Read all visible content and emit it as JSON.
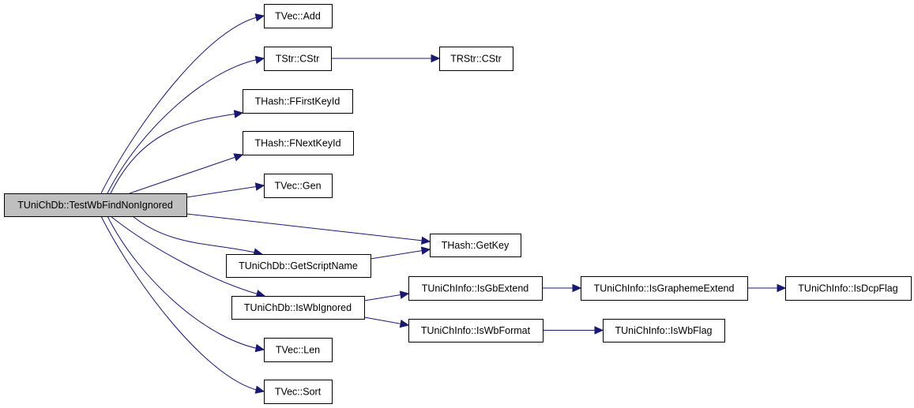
{
  "diagram": {
    "type": "call-graph",
    "edge_color": "#191970",
    "root_fill": "#bfbfbf",
    "nodes": [
      {
        "id": "root",
        "label": "TUniChDb::TestWbFindNonIgnored",
        "root": true
      },
      {
        "id": "add",
        "label": "TVec::Add"
      },
      {
        "id": "cstr",
        "label": "TStr::CStr"
      },
      {
        "id": "rcstr",
        "label": "TRStr::CStr"
      },
      {
        "id": "ffirst",
        "label": "THash::FFirstKeyId"
      },
      {
        "id": "fnext",
        "label": "THash::FNextKeyId"
      },
      {
        "id": "gen",
        "label": "TVec::Gen"
      },
      {
        "id": "getkey",
        "label": "THash::GetKey"
      },
      {
        "id": "script",
        "label": "TUniChDb::GetScriptName"
      },
      {
        "id": "wbign",
        "label": "TUniChDb::IsWbIgnored"
      },
      {
        "id": "gbext",
        "label": "TUniChInfo::IsGbExtend"
      },
      {
        "id": "wbfmt",
        "label": "TUniChInfo::IsWbFormat"
      },
      {
        "id": "graph",
        "label": "TUniChInfo::IsGraphemeExtend"
      },
      {
        "id": "dcp",
        "label": "TUniChInfo::IsDcpFlag"
      },
      {
        "id": "wbflag",
        "label": "TUniChInfo::IsWbFlag"
      },
      {
        "id": "len",
        "label": "TVec::Len"
      },
      {
        "id": "sort",
        "label": "TVec::Sort"
      }
    ],
    "edges": [
      [
        "root",
        "add"
      ],
      [
        "root",
        "cstr"
      ],
      [
        "cstr",
        "rcstr"
      ],
      [
        "root",
        "ffirst"
      ],
      [
        "root",
        "fnext"
      ],
      [
        "root",
        "gen"
      ],
      [
        "root",
        "getkey"
      ],
      [
        "root",
        "script"
      ],
      [
        "script",
        "getkey"
      ],
      [
        "root",
        "wbign"
      ],
      [
        "wbign",
        "gbext"
      ],
      [
        "wbign",
        "wbfmt"
      ],
      [
        "gbext",
        "graph"
      ],
      [
        "graph",
        "dcp"
      ],
      [
        "wbfmt",
        "wbflag"
      ],
      [
        "root",
        "len"
      ],
      [
        "root",
        "sort"
      ]
    ]
  }
}
